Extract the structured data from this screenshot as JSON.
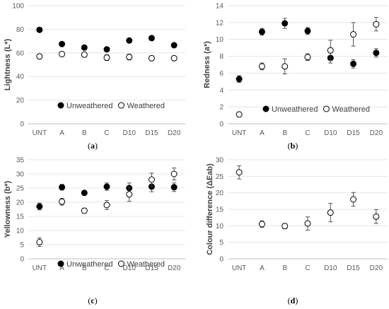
{
  "chart_data": [
    {
      "type": "scatter",
      "panel_label": "(a)",
      "ylabel": "Lightness (L*)",
      "categories": [
        "UNT",
        "A",
        "B",
        "C",
        "D10",
        "D15",
        "D20"
      ],
      "ylim": [
        0,
        100
      ],
      "yticks": [
        0,
        20,
        40,
        60,
        80,
        100
      ],
      "legend": "bottom",
      "series": [
        {
          "name": "Unweathered",
          "marker": "filled",
          "values": [
            79.5,
            67.5,
            64.5,
            63,
            70.5,
            72.5,
            66.5
          ],
          "errors": [
            0.8,
            0.8,
            0.8,
            0.8,
            1.5,
            1,
            1
          ]
        },
        {
          "name": "Weathered",
          "marker": "open",
          "values": [
            57,
            59,
            58.5,
            56,
            56.5,
            55.5,
            55.5
          ],
          "errors": [
            2,
            2,
            2,
            2.5,
            2.5,
            2,
            2
          ]
        }
      ]
    },
    {
      "type": "scatter",
      "panel_label": "(b)",
      "ylabel": "Redness (a*)",
      "categories": [
        "UNT",
        "A",
        "B",
        "C",
        "D10",
        "D15",
        "D20"
      ],
      "ylim": [
        0,
        14
      ],
      "yticks": [
        0,
        2,
        4,
        6,
        8,
        10,
        12,
        14
      ],
      "legend": "bottom",
      "series": [
        {
          "name": "Unweathered",
          "marker": "filled",
          "values": [
            5.3,
            10.9,
            11.9,
            11,
            7.8,
            7.1,
            8.4
          ],
          "errors": [
            0.4,
            0.4,
            0.6,
            0.4,
            0.6,
            0.5,
            0.5
          ]
        },
        {
          "name": "Weathered",
          "marker": "open",
          "values": [
            1.1,
            6.8,
            6.8,
            7.9,
            8.7,
            10.6,
            11.8
          ],
          "errors": [
            0.3,
            0.4,
            0.9,
            0.4,
            1.2,
            1.4,
            0.8
          ]
        }
      ]
    },
    {
      "type": "scatter",
      "panel_label": "(c)",
      "ylabel": "Yellowness (b*)",
      "categories": [
        "UNT",
        "A",
        "B",
        "C",
        "D10",
        "D15",
        "D20"
      ],
      "ylim": [
        0,
        35
      ],
      "yticks": [
        0,
        5,
        10,
        15,
        20,
        25,
        30,
        35
      ],
      "legend": "bottom",
      "series": [
        {
          "name": "Unweathered",
          "marker": "filled",
          "values": [
            18.5,
            25.3,
            23.3,
            25.5,
            25,
            25.5,
            25.3
          ],
          "errors": [
            1.2,
            1,
            0.6,
            1.3,
            1.8,
            1.8,
            1.5
          ]
        },
        {
          "name": "Weathered",
          "marker": "open",
          "values": [
            5.9,
            20.2,
            17,
            19,
            22.8,
            28,
            30
          ],
          "errors": [
            1.5,
            1.2,
            0.9,
            1.6,
            2.5,
            2.3,
            2.1
          ]
        }
      ]
    },
    {
      "type": "scatter",
      "panel_label": "(d)",
      "ylabel": "Colour difference (ΔEab)",
      "categories": [
        "UNT",
        "A",
        "B",
        "C",
        "D10",
        "D15",
        "D20"
      ],
      "ylim": [
        0,
        30
      ],
      "yticks": [
        0,
        5,
        10,
        15,
        20,
        25,
        30
      ],
      "series": [
        {
          "marker": "open",
          "values": [
            26.2,
            10.5,
            9.9,
            10.7,
            14,
            18,
            12.8
          ],
          "errors": [
            2,
            1,
            0.8,
            2,
            2.8,
            2.1,
            2.1
          ]
        }
      ]
    }
  ]
}
